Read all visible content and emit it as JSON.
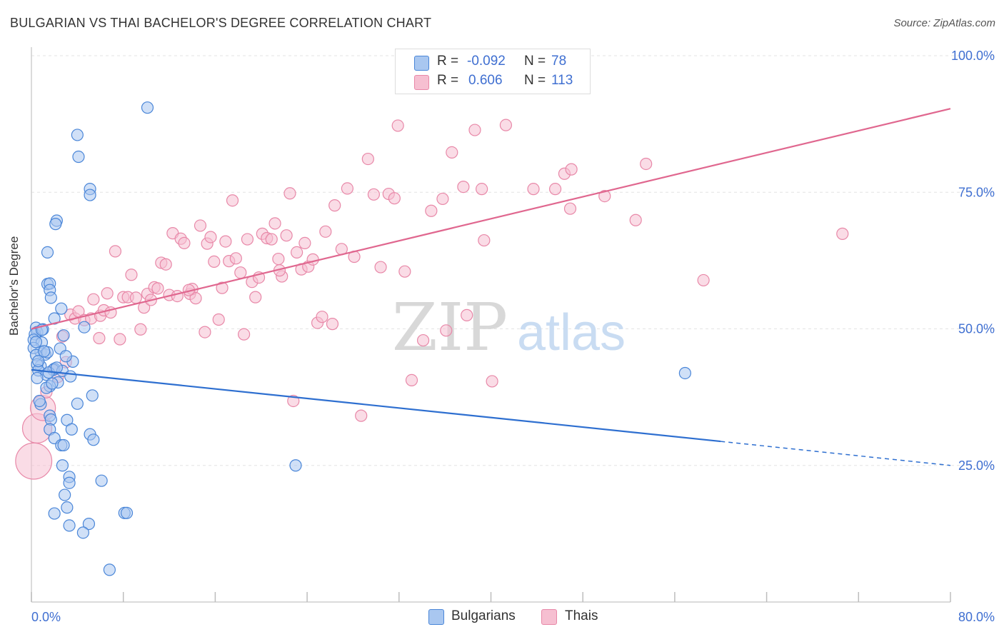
{
  "header": {
    "title": "BULGARIAN VS THAI BACHELOR'S DEGREE CORRELATION CHART",
    "source": "Source: ZipAtlas.com"
  },
  "watermark": {
    "zip": "ZIP",
    "atlas": "atlas"
  },
  "legend": {
    "rows": [
      {
        "r_label": "R =",
        "r_value": "-0.092",
        "n_label": "N =",
        "n_value": "78"
      },
      {
        "r_label": "R =",
        "r_value": "0.606",
        "n_label": "N =",
        "n_value": "113"
      }
    ]
  },
  "bottom_legend": {
    "bulgarians": "Bulgarians",
    "thais": "Thais"
  },
  "colors": {
    "bulgarian_fill": "#a9c7f0",
    "bulgarian_stroke": "#4a86d8",
    "bulgarian_line": "#2e6fd0",
    "thai_fill": "#f6bfd1",
    "thai_stroke": "#e888a8",
    "thai_line": "#e0678f",
    "tick_label": "#3f6fd1",
    "grid": "#e3e3e3"
  },
  "chart_data": {
    "type": "scatter",
    "title": "BULGARIAN VS THAI BACHELOR'S DEGREE CORRELATION CHART",
    "xlabel": "",
    "ylabel": "Bachelor's Degree",
    "xlim": [
      0,
      80
    ],
    "ylim": [
      0,
      100
    ],
    "x_tick_labels": [
      "0.0%",
      "80.0%"
    ],
    "y_ticks": [
      25,
      50,
      75,
      100
    ],
    "y_tick_labels": [
      "25.0%",
      "50.0%",
      "75.0%",
      "100.0%"
    ],
    "grid": true,
    "legend_position": "top-center",
    "series": [
      {
        "name": "Bulgarians",
        "stats": {
          "R": -0.092,
          "N": 78
        },
        "trend": {
          "x0": 0,
          "y0": 42.5,
          "x1": 60,
          "y1": 29.4,
          "dashed_to_x": 80,
          "dashed_y": 25.0
        },
        "points": [
          [
            10.1,
            90.5
          ],
          [
            4.0,
            85.5
          ],
          [
            4.1,
            81.5
          ],
          [
            5.1,
            75.6
          ],
          [
            5.1,
            74.5
          ],
          [
            2.2,
            69.8
          ],
          [
            2.1,
            69.2
          ],
          [
            1.4,
            64.0
          ],
          [
            1.4,
            58.2
          ],
          [
            1.6,
            58.3
          ],
          [
            1.6,
            57.1
          ],
          [
            1.7,
            55.7
          ],
          [
            2.0,
            51.9
          ],
          [
            2.6,
            53.7
          ],
          [
            0.4,
            50.2
          ],
          [
            0.5,
            49.4
          ],
          [
            0.3,
            49.0
          ],
          [
            1.0,
            49.9
          ],
          [
            0.2,
            48.0
          ],
          [
            2.8,
            48.8
          ],
          [
            2.5,
            46.4
          ],
          [
            0.9,
            47.5
          ],
          [
            0.8,
            45.8
          ],
          [
            1.2,
            45.3
          ],
          [
            1.4,
            45.7
          ],
          [
            0.2,
            46.5
          ],
          [
            0.4,
            45.2
          ],
          [
            4.6,
            50.3
          ],
          [
            3.6,
            44.0
          ],
          [
            0.8,
            43.2
          ],
          [
            0.5,
            43.5
          ],
          [
            2.0,
            42.7
          ],
          [
            1.9,
            42.5
          ],
          [
            0.6,
            42.4
          ],
          [
            2.7,
            42.3
          ],
          [
            1.3,
            41.6
          ],
          [
            0.5,
            41.0
          ],
          [
            3.4,
            41.3
          ],
          [
            2.3,
            40.2
          ],
          [
            1.6,
            39.5
          ],
          [
            1.3,
            39.2
          ],
          [
            5.3,
            37.8
          ],
          [
            0.8,
            36.2
          ],
          [
            4.0,
            36.3
          ],
          [
            1.6,
            34.1
          ],
          [
            3.1,
            33.3
          ],
          [
            1.7,
            33.4
          ],
          [
            3.5,
            31.6
          ],
          [
            1.6,
            31.6
          ],
          [
            5.1,
            30.7
          ],
          [
            2.0,
            30.0
          ],
          [
            5.4,
            29.7
          ],
          [
            2.6,
            28.7
          ],
          [
            2.8,
            28.7
          ],
          [
            23.0,
            25.0
          ],
          [
            2.7,
            25.0
          ],
          [
            3.3,
            22.9
          ],
          [
            3.3,
            21.8
          ],
          [
            6.1,
            22.2
          ],
          [
            2.9,
            19.6
          ],
          [
            3.1,
            17.3
          ],
          [
            2.0,
            16.2
          ],
          [
            8.1,
            16.3
          ],
          [
            8.3,
            16.3
          ],
          [
            3.3,
            14.0
          ],
          [
            5.0,
            14.3
          ],
          [
            4.5,
            12.7
          ],
          [
            6.8,
            5.9
          ],
          [
            56.9,
            41.9
          ],
          [
            0.7,
            36.8
          ],
          [
            1.5,
            42.0
          ],
          [
            2.2,
            42.9
          ],
          [
            0.4,
            47.6
          ],
          [
            1.8,
            40.0
          ],
          [
            0.6,
            44.1
          ],
          [
            1.1,
            45.9
          ],
          [
            3.0,
            45.0
          ],
          [
            0.9,
            49.8
          ]
        ]
      },
      {
        "name": "Thais",
        "stats": {
          "R": 0.606,
          "N": 113
        },
        "trend": {
          "x0": 0,
          "y0": 50.0,
          "x1": 80,
          "y1": 90.3
        },
        "points": [
          [
            0.2,
            25.8
          ],
          [
            0.5,
            31.8
          ],
          [
            1.0,
            35.5
          ],
          [
            1.3,
            38.4
          ],
          [
            1.9,
            42.5
          ],
          [
            2.3,
            41.2
          ],
          [
            2.7,
            48.6
          ],
          [
            3.0,
            43.9
          ],
          [
            3.4,
            52.6
          ],
          [
            3.8,
            51.9
          ],
          [
            4.1,
            53.2
          ],
          [
            4.6,
            51.6
          ],
          [
            5.2,
            51.9
          ],
          [
            5.4,
            55.4
          ],
          [
            5.9,
            48.3
          ],
          [
            6.0,
            52.4
          ],
          [
            6.3,
            53.4
          ],
          [
            6.6,
            56.5
          ],
          [
            6.9,
            53.0
          ],
          [
            7.3,
            64.2
          ],
          [
            7.7,
            48.1
          ],
          [
            8.0,
            55.8
          ],
          [
            8.4,
            55.8
          ],
          [
            8.7,
            59.9
          ],
          [
            9.1,
            55.7
          ],
          [
            9.5,
            49.9
          ],
          [
            9.8,
            53.9
          ],
          [
            10.1,
            56.4
          ],
          [
            10.4,
            55.3
          ],
          [
            10.7,
            57.6
          ],
          [
            11.0,
            57.4
          ],
          [
            11.3,
            62.1
          ],
          [
            11.7,
            61.8
          ],
          [
            12.0,
            56.2
          ],
          [
            12.3,
            67.5
          ],
          [
            12.7,
            56.0
          ],
          [
            13.0,
            66.5
          ],
          [
            13.3,
            65.7
          ],
          [
            13.8,
            56.4
          ],
          [
            14.0,
            57.3
          ],
          [
            14.3,
            55.6
          ],
          [
            14.7,
            68.9
          ],
          [
            15.1,
            49.4
          ],
          [
            15.3,
            65.6
          ],
          [
            15.6,
            66.8
          ],
          [
            15.9,
            62.3
          ],
          [
            16.3,
            51.7
          ],
          [
            16.6,
            57.5
          ],
          [
            16.9,
            66.0
          ],
          [
            17.2,
            62.4
          ],
          [
            17.5,
            73.5
          ],
          [
            17.8,
            62.9
          ],
          [
            18.2,
            60.3
          ],
          [
            18.5,
            49.0
          ],
          [
            18.8,
            66.4
          ],
          [
            19.2,
            58.6
          ],
          [
            19.5,
            55.8
          ],
          [
            19.8,
            59.4
          ],
          [
            20.1,
            67.4
          ],
          [
            20.5,
            66.6
          ],
          [
            20.9,
            66.4
          ],
          [
            21.2,
            69.3
          ],
          [
            21.5,
            62.8
          ],
          [
            21.8,
            59.6
          ],
          [
            22.2,
            67.1
          ],
          [
            22.5,
            74.8
          ],
          [
            22.8,
            36.8
          ],
          [
            23.1,
            64.0
          ],
          [
            23.5,
            60.9
          ],
          [
            23.8,
            65.7
          ],
          [
            24.1,
            61.4
          ],
          [
            24.5,
            62.7
          ],
          [
            24.9,
            51.1
          ],
          [
            25.3,
            52.2
          ],
          [
            25.6,
            67.8
          ],
          [
            26.4,
            72.6
          ],
          [
            27.0,
            64.6
          ],
          [
            27.5,
            75.7
          ],
          [
            28.1,
            63.2
          ],
          [
            28.7,
            34.1
          ],
          [
            29.3,
            81.1
          ],
          [
            29.8,
            74.6
          ],
          [
            30.4,
            61.3
          ],
          [
            31.1,
            74.7
          ],
          [
            31.6,
            73.9
          ],
          [
            31.9,
            87.2
          ],
          [
            32.5,
            60.5
          ],
          [
            33.1,
            40.6
          ],
          [
            34.1,
            47.9
          ],
          [
            34.8,
            71.6
          ],
          [
            35.8,
            73.8
          ],
          [
            36.1,
            49.7
          ],
          [
            36.6,
            82.3
          ],
          [
            37.6,
            76.0
          ],
          [
            38.6,
            86.4
          ],
          [
            39.2,
            75.6
          ],
          [
            39.4,
            66.2
          ],
          [
            40.1,
            40.4
          ],
          [
            41.3,
            87.3
          ],
          [
            43.7,
            75.6
          ],
          [
            46.4,
            78.4
          ],
          [
            46.9,
            72.0
          ],
          [
            47.0,
            79.2
          ],
          [
            45.6,
            75.6
          ],
          [
            49.9,
            74.3
          ],
          [
            52.6,
            69.9
          ],
          [
            53.5,
            80.2
          ],
          [
            58.5,
            58.9
          ],
          [
            70.6,
            67.4
          ],
          [
            37.9,
            52.5
          ],
          [
            26.2,
            50.9
          ],
          [
            21.6,
            60.7
          ],
          [
            13.7,
            57.1
          ]
        ]
      }
    ]
  }
}
